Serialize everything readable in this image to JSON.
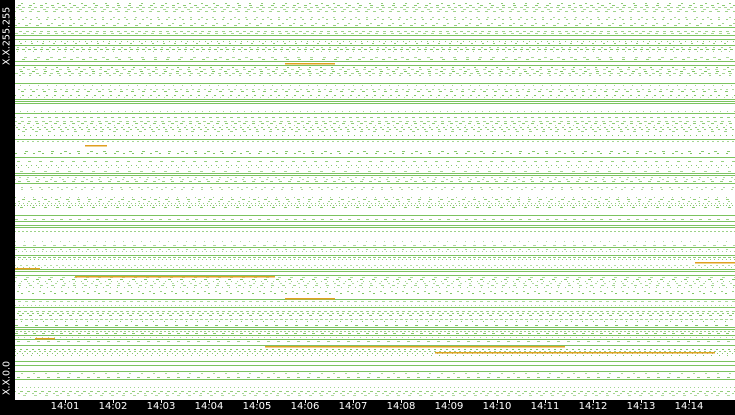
{
  "chart_data": {
    "type": "scatter",
    "x_ticks": [
      "14:01",
      "14:02",
      "14:03",
      "14:04",
      "14:05",
      "14:06",
      "14:07",
      "14:08",
      "14:09",
      "14:10",
      "14:11",
      "14:12",
      "14:13",
      "14:14"
    ],
    "y_range_labels": {
      "top": "X.X.255.255",
      "bottom": "X.X.0.0"
    },
    "colors": {
      "background": "#ffffff",
      "axis": "#000000",
      "normal": "#7cc35f",
      "alert": "#e0a020"
    },
    "grid": false,
    "legend": "none"
  }
}
